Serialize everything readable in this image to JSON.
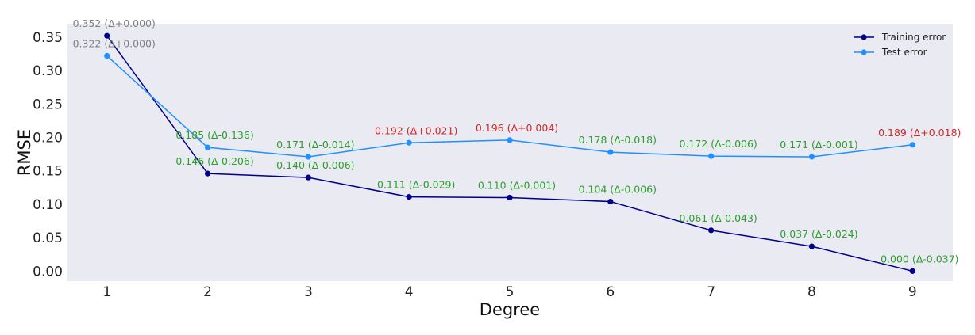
{
  "chart_data": {
    "type": "line",
    "title": "",
    "xlabel": "Degree",
    "ylabel": "RMSE",
    "x": [
      1,
      2,
      3,
      4,
      5,
      6,
      7,
      8,
      9
    ],
    "xlim": [
      0.6,
      9.4
    ],
    "ylim": [
      -0.015,
      0.37
    ],
    "yticks": [
      0.0,
      0.05,
      0.1,
      0.15,
      0.2,
      0.25,
      0.3,
      0.35
    ],
    "yticklabels": [
      "0.00",
      "0.05",
      "0.10",
      "0.15",
      "0.20",
      "0.25",
      "0.30",
      "0.35"
    ],
    "xticklabels": [
      "1",
      "2",
      "3",
      "4",
      "5",
      "6",
      "7",
      "8",
      "9"
    ],
    "grid": false,
    "legend_position": "top-right",
    "background_color": "#eaeaf2",
    "series": [
      {
        "name": "Training error",
        "color": "#00008b",
        "values": [
          0.352,
          0.146,
          0.14,
          0.111,
          0.11,
          0.104,
          0.061,
          0.037,
          0.0
        ],
        "labels": [
          "0.352 (Δ+0.000)",
          "0.146 (Δ-0.206)",
          "0.140 (Δ-0.006)",
          "0.111 (Δ-0.029)",
          "0.110 (Δ-0.001)",
          "0.104 (Δ-0.006)",
          "0.061 (Δ-0.043)",
          "0.037 (Δ-0.024)",
          "0.000 (Δ-0.037)"
        ],
        "label_colors": [
          "#808080",
          "#2ca02c",
          "#2ca02c",
          "#2ca02c",
          "#2ca02c",
          "#2ca02c",
          "#2ca02c",
          "#2ca02c",
          "#2ca02c"
        ]
      },
      {
        "name": "Test error",
        "color": "#1e90ff",
        "values": [
          0.322,
          0.185,
          0.171,
          0.192,
          0.196,
          0.178,
          0.172,
          0.171,
          0.189
        ],
        "labels": [
          "0.322 (Δ+0.000)",
          "0.185 (Δ-0.136)",
          "0.171 (Δ-0.014)",
          "0.192 (Δ+0.021)",
          "0.196 (Δ+0.004)",
          "0.178 (Δ-0.018)",
          "0.172 (Δ-0.006)",
          "0.171 (Δ-0.001)",
          "0.189 (Δ+0.018)"
        ],
        "label_colors": [
          "#808080",
          "#2ca02c",
          "#2ca02c",
          "#d62728",
          "#d62728",
          "#2ca02c",
          "#2ca02c",
          "#2ca02c",
          "#d62728"
        ]
      }
    ]
  }
}
